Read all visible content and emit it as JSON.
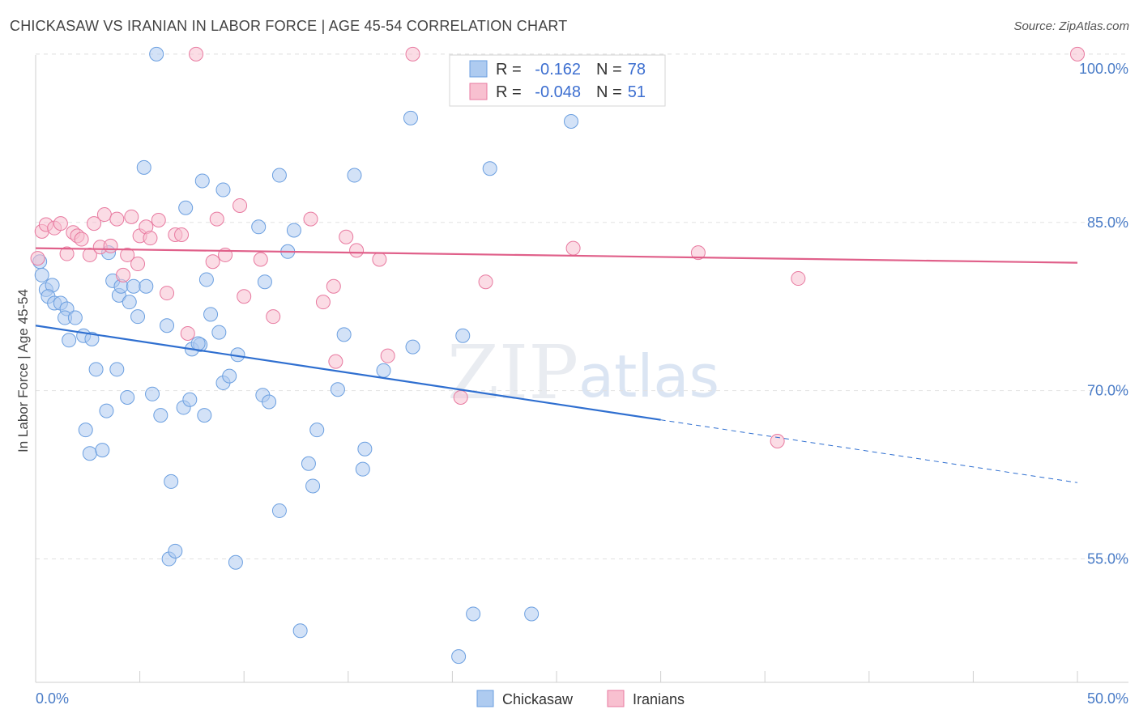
{
  "title": "CHICKASAW VS IRANIAN IN LABOR FORCE | AGE 45-54 CORRELATION CHART",
  "source": "Source: ZipAtlas.com",
  "watermark": {
    "zip": "ZIP",
    "atlas": "atlas"
  },
  "legend": {
    "r_label": "R =",
    "n_label": "N =",
    "rows": [
      {
        "r": "-0.162",
        "n": "78",
        "color": "#aecbf0"
      },
      {
        "r": "-0.048",
        "n": "51",
        "color": "#f8c0d0"
      }
    ]
  },
  "chart_data": {
    "type": "scatter",
    "title": "CHICKASAW VS IRANIAN IN LABOR FORCE | AGE 45-54 CORRELATION CHART",
    "xlabel": "",
    "ylabel": "In Labor Force | Age 45-54",
    "xlim": [
      0,
      50
    ],
    "ylim": [
      44,
      101
    ],
    "x_tick_labels": [
      "0.0%",
      "50.0%"
    ],
    "y_ticks": [
      55,
      70,
      85,
      100
    ],
    "y_tick_labels": [
      "55.0%",
      "70.0%",
      "85.0%",
      "100.0%"
    ],
    "grid": true,
    "legend_position": "top-center",
    "series": [
      {
        "name": "Chickasaw",
        "color": "#6b9fe0",
        "fill": "#aecbf0",
        "trend": {
          "x0": 0,
          "y0": 75.8,
          "x1": 30,
          "y1": 67.4,
          "dash_to_x": 50,
          "dash_to_y": 61.8
        },
        "points": [
          [
            0.2,
            81.5
          ],
          [
            0.3,
            80.3
          ],
          [
            0.5,
            79.0
          ],
          [
            0.8,
            79.4
          ],
          [
            0.6,
            78.4
          ],
          [
            0.9,
            77.8
          ],
          [
            1.2,
            77.8
          ],
          [
            1.5,
            77.3
          ],
          [
            1.4,
            76.5
          ],
          [
            1.9,
            76.5
          ],
          [
            1.6,
            74.5
          ],
          [
            2.3,
            74.9
          ],
          [
            2.7,
            74.6
          ],
          [
            2.9,
            71.9
          ],
          [
            2.4,
            66.5
          ],
          [
            2.6,
            64.4
          ],
          [
            3.2,
            64.7
          ],
          [
            3.4,
            68.2
          ],
          [
            3.5,
            82.3
          ],
          [
            3.7,
            79.8
          ],
          [
            4.0,
            78.5
          ],
          [
            4.1,
            79.3
          ],
          [
            4.5,
            77.9
          ],
          [
            4.7,
            79.3
          ],
          [
            5.3,
            79.3
          ],
          [
            4.9,
            76.6
          ],
          [
            3.9,
            71.9
          ],
          [
            4.4,
            69.4
          ],
          [
            5.6,
            69.7
          ],
          [
            6.0,
            67.8
          ],
          [
            6.3,
            75.8
          ],
          [
            6.5,
            61.9
          ],
          [
            6.4,
            55.0
          ],
          [
            6.7,
            55.7
          ],
          [
            7.1,
            68.5
          ],
          [
            7.4,
            69.2
          ],
          [
            7.5,
            73.7
          ],
          [
            7.9,
            74.1
          ],
          [
            8.1,
            67.8
          ],
          [
            8.4,
            76.8
          ],
          [
            8.8,
            75.2
          ],
          [
            9.0,
            70.7
          ],
          [
            9.3,
            71.3
          ],
          [
            9.7,
            73.2
          ],
          [
            9.6,
            54.7
          ],
          [
            10.9,
            69.6
          ],
          [
            11.2,
            69.0
          ],
          [
            11.7,
            59.3
          ],
          [
            12.1,
            82.4
          ],
          [
            12.4,
            84.3
          ],
          [
            12.7,
            48.6
          ],
          [
            13.1,
            63.5
          ],
          [
            13.3,
            61.5
          ],
          [
            13.5,
            66.5
          ],
          [
            14.8,
            75.0
          ],
          [
            14.5,
            70.1
          ],
          [
            15.7,
            63.0
          ],
          [
            15.8,
            64.8
          ],
          [
            16.7,
            71.8
          ],
          [
            18.1,
            73.9
          ],
          [
            18.0,
            94.3
          ],
          [
            20.5,
            74.9
          ],
          [
            20.3,
            46.3
          ],
          [
            21.0,
            50.1
          ],
          [
            21.8,
            89.8
          ],
          [
            23.8,
            50.1
          ],
          [
            25.7,
            94.0
          ],
          [
            5.8,
            100.0
          ],
          [
            5.2,
            89.9
          ],
          [
            8.0,
            88.7
          ],
          [
            9.0,
            87.9
          ],
          [
            11.7,
            89.2
          ],
          [
            15.3,
            89.2
          ],
          [
            7.2,
            86.3
          ],
          [
            10.7,
            84.6
          ],
          [
            8.2,
            79.9
          ],
          [
            11.0,
            79.7
          ],
          [
            7.8,
            74.2
          ]
        ]
      },
      {
        "name": "Iranians",
        "color": "#e87aa0",
        "fill": "#f8c0d0",
        "trend": {
          "x0": 0,
          "y0": 82.7,
          "x1": 50,
          "y1": 81.4
        },
        "points": [
          [
            0.3,
            84.2
          ],
          [
            0.5,
            84.8
          ],
          [
            0.9,
            84.5
          ],
          [
            1.2,
            84.9
          ],
          [
            1.5,
            82.2
          ],
          [
            1.8,
            84.1
          ],
          [
            2.0,
            83.8
          ],
          [
            2.2,
            83.5
          ],
          [
            2.6,
            82.1
          ],
          [
            2.8,
            84.9
          ],
          [
            3.1,
            82.8
          ],
          [
            3.3,
            85.7
          ],
          [
            3.6,
            82.9
          ],
          [
            3.9,
            85.3
          ],
          [
            4.2,
            80.3
          ],
          [
            4.4,
            82.1
          ],
          [
            4.6,
            85.5
          ],
          [
            4.9,
            81.3
          ],
          [
            5.0,
            83.8
          ],
          [
            5.3,
            84.6
          ],
          [
            5.5,
            83.6
          ],
          [
            5.9,
            85.2
          ],
          [
            6.3,
            78.7
          ],
          [
            6.7,
            83.9
          ],
          [
            7.0,
            83.9
          ],
          [
            7.3,
            75.1
          ],
          [
            8.5,
            81.5
          ],
          [
            8.7,
            85.3
          ],
          [
            9.1,
            82.1
          ],
          [
            9.8,
            86.5
          ],
          [
            10.0,
            78.4
          ],
          [
            10.8,
            81.7
          ],
          [
            11.4,
            76.6
          ],
          [
            13.2,
            85.3
          ],
          [
            13.8,
            77.9
          ],
          [
            14.3,
            79.3
          ],
          [
            14.4,
            72.6
          ],
          [
            14.9,
            83.7
          ],
          [
            15.4,
            82.5
          ],
          [
            16.5,
            81.7
          ],
          [
            16.9,
            73.1
          ],
          [
            20.4,
            69.4
          ],
          [
            21.6,
            79.7
          ],
          [
            25.8,
            82.7
          ],
          [
            31.8,
            82.3
          ],
          [
            35.6,
            65.5
          ],
          [
            36.6,
            80.0
          ],
          [
            7.7,
            100.0
          ],
          [
            18.1,
            100.0
          ],
          [
            50.0,
            100.0
          ],
          [
            0.1,
            81.8
          ]
        ]
      }
    ]
  }
}
